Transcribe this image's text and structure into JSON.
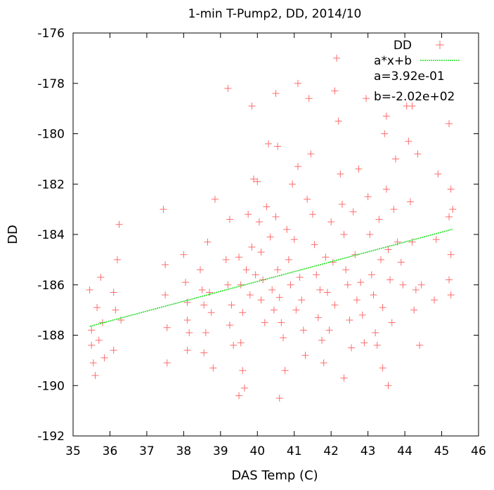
{
  "chart_data": {
    "type": "scatter",
    "title": "1-min T-Pump2, DD, 2014/10",
    "xlabel": "DAS Temp (C)",
    "ylabel": "DD",
    "xlim": [
      35,
      46
    ],
    "ylim": [
      -192,
      -176
    ],
    "x_ticks": [
      "35",
      "36",
      "37",
      "38",
      "39",
      "40",
      "41",
      "42",
      "43",
      "44",
      "45",
      "46"
    ],
    "y_ticks": [
      "-176",
      "-178",
      "-180",
      "-182",
      "-184",
      "-186",
      "-188",
      "-190",
      "-192"
    ],
    "grid": false,
    "legend_position": "top-right",
    "series": [
      {
        "name": "DD",
        "marker": "plus",
        "color": "#ff6b6b",
        "points": [
          [
            35.45,
            -186.2
          ],
          [
            35.5,
            -187.8
          ],
          [
            35.5,
            -188.4
          ],
          [
            35.55,
            -189.1
          ],
          [
            35.6,
            -189.6
          ],
          [
            35.65,
            -186.9
          ],
          [
            35.7,
            -188.2
          ],
          [
            35.75,
            -185.7
          ],
          [
            35.8,
            -187.5
          ],
          [
            35.85,
            -188.9
          ],
          [
            36.1,
            -186.3
          ],
          [
            36.15,
            -187.0
          ],
          [
            36.2,
            -185.0
          ],
          [
            36.25,
            -183.6
          ],
          [
            36.3,
            -187.4
          ],
          [
            36.1,
            -188.6
          ],
          [
            37.45,
            -183.0
          ],
          [
            37.5,
            -185.2
          ],
          [
            37.5,
            -186.4
          ],
          [
            37.55,
            -187.7
          ],
          [
            37.55,
            -189.1
          ],
          [
            38.0,
            -184.8
          ],
          [
            38.05,
            -185.9
          ],
          [
            38.1,
            -186.7
          ],
          [
            38.1,
            -187.4
          ],
          [
            38.15,
            -187.9
          ],
          [
            38.1,
            -188.6
          ],
          [
            38.45,
            -185.4
          ],
          [
            38.5,
            -186.2
          ],
          [
            38.55,
            -186.8
          ],
          [
            38.6,
            -187.9
          ],
          [
            38.55,
            -188.7
          ],
          [
            38.7,
            -186.3
          ],
          [
            38.75,
            -187.1
          ],
          [
            38.8,
            -189.3
          ],
          [
            38.65,
            -184.3
          ],
          [
            38.85,
            -182.6
          ],
          [
            39.2,
            -178.2
          ],
          [
            39.25,
            -183.4
          ],
          [
            39.15,
            -185.0
          ],
          [
            39.2,
            -186.0
          ],
          [
            39.3,
            -186.8
          ],
          [
            39.25,
            -187.6
          ],
          [
            39.35,
            -188.4
          ],
          [
            39.5,
            -184.9
          ],
          [
            39.55,
            -186.0
          ],
          [
            39.6,
            -187.1
          ],
          [
            39.55,
            -188.3
          ],
          [
            39.6,
            -189.4
          ],
          [
            39.65,
            -190.1
          ],
          [
            39.5,
            -190.4
          ],
          [
            39.7,
            -185.4
          ],
          [
            39.75,
            -183.2
          ],
          [
            39.8,
            -186.4
          ],
          [
            39.85,
            -184.5
          ],
          [
            39.9,
            -181.8
          ],
          [
            39.95,
            -185.6
          ],
          [
            39.85,
            -178.9
          ],
          [
            40.0,
            -181.9
          ],
          [
            40.05,
            -183.5
          ],
          [
            40.1,
            -184.7
          ],
          [
            40.15,
            -185.8
          ],
          [
            40.1,
            -186.6
          ],
          [
            40.2,
            -187.5
          ],
          [
            40.25,
            -182.9
          ],
          [
            40.3,
            -180.4
          ],
          [
            40.35,
            -184.1
          ],
          [
            40.4,
            -186.2
          ],
          [
            40.45,
            -187.0
          ],
          [
            40.5,
            -183.3
          ],
          [
            40.55,
            -185.4
          ],
          [
            40.6,
            -186.5
          ],
          [
            40.65,
            -187.5
          ],
          [
            40.7,
            -188.1
          ],
          [
            40.55,
            -180.5
          ],
          [
            40.5,
            -178.4
          ],
          [
            40.75,
            -189.4
          ],
          [
            40.6,
            -190.5
          ],
          [
            40.8,
            -183.8
          ],
          [
            40.85,
            -185.0
          ],
          [
            40.9,
            -186.0
          ],
          [
            40.95,
            -182.0
          ],
          [
            41.0,
            -184.2
          ],
          [
            41.05,
            -187.0
          ],
          [
            41.1,
            -181.3
          ],
          [
            41.15,
            -185.7
          ],
          [
            41.2,
            -186.6
          ],
          [
            41.25,
            -187.8
          ],
          [
            41.3,
            -188.8
          ],
          [
            41.1,
            -178.0
          ],
          [
            41.35,
            -182.6
          ],
          [
            41.4,
            -178.6
          ],
          [
            41.45,
            -180.8
          ],
          [
            41.5,
            -183.2
          ],
          [
            41.55,
            -184.4
          ],
          [
            41.6,
            -185.6
          ],
          [
            41.65,
            -187.3
          ],
          [
            41.7,
            -186.2
          ],
          [
            41.75,
            -188.2
          ],
          [
            41.8,
            -189.1
          ],
          [
            41.85,
            -184.9
          ],
          [
            41.9,
            -186.3
          ],
          [
            41.95,
            -187.8
          ],
          [
            42.0,
            -183.5
          ],
          [
            42.05,
            -185.1
          ],
          [
            42.1,
            -186.8
          ],
          [
            42.15,
            -177.0
          ],
          [
            42.1,
            -178.3
          ],
          [
            42.2,
            -179.5
          ],
          [
            42.25,
            -181.6
          ],
          [
            42.3,
            -182.8
          ],
          [
            42.35,
            -184.0
          ],
          [
            42.4,
            -185.4
          ],
          [
            42.45,
            -186.0
          ],
          [
            42.5,
            -187.4
          ],
          [
            42.55,
            -188.5
          ],
          [
            42.35,
            -189.7
          ],
          [
            42.6,
            -183.1
          ],
          [
            42.65,
            -184.8
          ],
          [
            42.7,
            -186.6
          ],
          [
            42.75,
            -181.4
          ],
          [
            42.8,
            -185.9
          ],
          [
            42.85,
            -187.2
          ],
          [
            42.9,
            -188.3
          ],
          [
            42.95,
            -178.6
          ],
          [
            43.0,
            -182.5
          ],
          [
            43.05,
            -184.0
          ],
          [
            43.1,
            -185.6
          ],
          [
            43.15,
            -186.4
          ],
          [
            43.2,
            -187.9
          ],
          [
            43.25,
            -188.4
          ],
          [
            43.3,
            -183.4
          ],
          [
            43.35,
            -185.0
          ],
          [
            43.4,
            -186.9
          ],
          [
            43.45,
            -180.0
          ],
          [
            43.5,
            -182.2
          ],
          [
            43.55,
            -184.6
          ],
          [
            43.6,
            -185.8
          ],
          [
            43.65,
            -187.5
          ],
          [
            43.5,
            -179.3
          ],
          [
            43.55,
            -190.0
          ],
          [
            43.4,
            -189.3
          ],
          [
            43.7,
            -183.0
          ],
          [
            43.75,
            -181.0
          ],
          [
            43.8,
            -184.3
          ],
          [
            43.9,
            -185.1
          ],
          [
            43.95,
            -186.0
          ],
          [
            44.05,
            -178.9
          ],
          [
            44.1,
            -180.3
          ],
          [
            44.15,
            -182.7
          ],
          [
            44.2,
            -184.3
          ],
          [
            44.25,
            -187.0
          ],
          [
            44.3,
            -186.2
          ],
          [
            44.2,
            -178.9
          ],
          [
            44.35,
            -180.8
          ],
          [
            44.4,
            -188.4
          ],
          [
            44.45,
            -186.0
          ],
          [
            44.8,
            -186.6
          ],
          [
            44.85,
            -184.2
          ],
          [
            44.9,
            -181.6
          ],
          [
            45.2,
            -179.6
          ],
          [
            45.25,
            -182.2
          ],
          [
            45.2,
            -183.3
          ],
          [
            45.25,
            -184.8
          ],
          [
            45.2,
            -185.8
          ],
          [
            45.25,
            -186.4
          ],
          [
            45.3,
            -183.0
          ]
        ]
      },
      {
        "name": "a*x+b",
        "type": "line",
        "style": "dotted",
        "color": "#22dd22",
        "x": [
          35.45,
          45.3
        ],
        "y": [
          -187.65,
          -183.79
        ]
      }
    ],
    "annotations": [
      "a=3.92e-01",
      "b=-2.02e+02"
    ]
  }
}
